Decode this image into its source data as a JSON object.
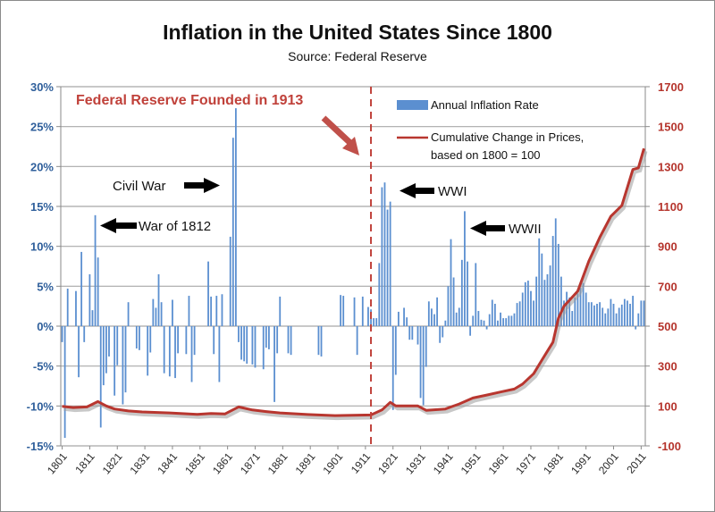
{
  "chart_data": {
    "type": "bar+line",
    "title": "Inflation in the United States Since 1800",
    "subtitle": "Source: Federal Reserve",
    "legend_position": "top-right",
    "grid": true,
    "left_axis": {
      "ylim": [
        -15,
        30
      ],
      "ticks": [
        "-15%",
        "-10%",
        "-5%",
        "0%",
        "5%",
        "10%",
        "15%",
        "20%",
        "25%",
        "30%"
      ],
      "tick_values": [
        -15,
        -10,
        -5,
        0,
        5,
        10,
        15,
        20,
        25,
        30
      ],
      "color": "#2f5f9b"
    },
    "right_axis": {
      "ylim": [
        -100,
        1700
      ],
      "ticks": [
        "-100",
        "100",
        "300",
        "500",
        "700",
        "900",
        "1100",
        "1300",
        "1500",
        "1700"
      ],
      "tick_values": [
        -100,
        100,
        300,
        500,
        700,
        900,
        1100,
        1300,
        1500,
        1700
      ],
      "color": "#b5342c"
    },
    "x_ticks": [
      "1801",
      "1811",
      "1821",
      "1831",
      "1841",
      "1851",
      "1861",
      "1871",
      "1881",
      "1891",
      "1901",
      "1911",
      "1921",
      "1931",
      "1941",
      "1951",
      "1961",
      "1971",
      "1981",
      "1991",
      "2001",
      "2011"
    ],
    "x_tick_values": [
      1801,
      1811,
      1821,
      1831,
      1841,
      1851,
      1861,
      1871,
      1881,
      1891,
      1901,
      1911,
      1921,
      1931,
      1941,
      1951,
      1961,
      1971,
      1981,
      1991,
      2001,
      2011
    ],
    "series": [
      {
        "name": "Annual Inflation Rate",
        "type": "bar",
        "axis": "left",
        "color": "#5b8fd0",
        "x": [
          1801,
          1802,
          1803,
          1804,
          1805,
          1806,
          1807,
          1808,
          1809,
          1810,
          1811,
          1812,
          1813,
          1814,
          1815,
          1816,
          1817,
          1818,
          1819,
          1820,
          1821,
          1822,
          1823,
          1824,
          1825,
          1826,
          1827,
          1828,
          1829,
          1830,
          1831,
          1832,
          1833,
          1834,
          1835,
          1836,
          1837,
          1838,
          1839,
          1840,
          1841,
          1842,
          1843,
          1844,
          1845,
          1846,
          1847,
          1848,
          1849,
          1850,
          1851,
          1852,
          1853,
          1854,
          1855,
          1856,
          1857,
          1858,
          1859,
          1860,
          1861,
          1862,
          1863,
          1864,
          1865,
          1866,
          1867,
          1868,
          1869,
          1870,
          1871,
          1872,
          1873,
          1874,
          1875,
          1876,
          1877,
          1878,
          1879,
          1880,
          1881,
          1882,
          1883,
          1884,
          1885,
          1886,
          1887,
          1888,
          1889,
          1890,
          1891,
          1892,
          1893,
          1894,
          1895,
          1896,
          1897,
          1898,
          1899,
          1900,
          1901,
          1902,
          1903,
          1904,
          1905,
          1906,
          1907,
          1908,
          1909,
          1910,
          1911,
          1912,
          1913,
          1914,
          1915,
          1916,
          1917,
          1918,
          1919,
          1920,
          1921,
          1922,
          1923,
          1924,
          1925,
          1926,
          1927,
          1928,
          1929,
          1930,
          1931,
          1932,
          1933,
          1934,
          1935,
          1936,
          1937,
          1938,
          1939,
          1940,
          1941,
          1942,
          1943,
          1944,
          1945,
          1946,
          1947,
          1948,
          1949,
          1950,
          1951,
          1952,
          1953,
          1954,
          1955,
          1956,
          1957,
          1958,
          1959,
          1960,
          1961,
          1962,
          1963,
          1964,
          1965,
          1966,
          1967,
          1968,
          1969,
          1970,
          1971,
          1972,
          1973,
          1974,
          1975,
          1976,
          1977,
          1978,
          1979,
          1980,
          1981,
          1982,
          1983,
          1984,
          1985,
          1986,
          1987,
          1988,
          1989,
          1990,
          1991,
          1992,
          1993,
          1994,
          1995,
          1996,
          1997,
          1998,
          1999,
          2000,
          2001,
          2002,
          2003,
          2004,
          2005,
          2006,
          2007,
          2008,
          2009,
          2010,
          2011,
          2012
        ],
        "values": [
          -2.0,
          -14.0,
          4.7,
          0,
          0,
          4.4,
          -6.4,
          9.3,
          -2.0,
          0,
          6.5,
          2.0,
          13.9,
          8.6,
          -12.7,
          -7.4,
          -5.9,
          -3.8,
          0,
          -8.7,
          -4.9,
          0,
          -9.8,
          -8.3,
          3.0,
          0,
          0,
          -2.8,
          -3.0,
          0,
          0,
          -6.2,
          -3.3,
          3.4,
          2.3,
          6.5,
          3.0,
          -5.9,
          0,
          -6.3,
          3.3,
          -6.5,
          -3.4,
          0,
          0,
          -3.5,
          3.8,
          -7.0,
          -3.6,
          0,
          0,
          0,
          0,
          8.1,
          3.7,
          -3.5,
          3.8,
          -7.0,
          4.0,
          0,
          0,
          11.2,
          23.6,
          27.3,
          -2.0,
          -4.2,
          -4.4,
          -4.7,
          0,
          -4.8,
          -5.2,
          0,
          0,
          -5.4,
          -2.7,
          -2.9,
          0,
          -9.5,
          -3.4,
          3.7,
          0,
          0,
          -3.4,
          -3.6,
          0,
          0,
          0,
          0,
          0,
          0,
          0,
          0,
          0,
          -3.6,
          -3.8,
          0,
          0,
          0,
          0,
          0,
          0,
          3.9,
          3.8,
          0,
          0,
          0,
          3.6,
          -3.6,
          0,
          3.7,
          0,
          2.4,
          2.1,
          1.0,
          1.0,
          7.9,
          17.4,
          18.0,
          14.6,
          15.6,
          -10.5,
          -6.1,
          1.8,
          0.0,
          2.3,
          1.1,
          -1.7,
          -1.7,
          0.0,
          -2.3,
          -9.0,
          -9.9,
          -5.1,
          3.1,
          2.2,
          1.5,
          3.6,
          -2.1,
          -1.4,
          0.7,
          5.0,
          10.9,
          6.1,
          1.7,
          2.3,
          8.3,
          14.4,
          8.1,
          -1.2,
          1.3,
          7.9,
          1.9,
          0.8,
          0.7,
          -0.4,
          1.5,
          3.3,
          2.8,
          0.7,
          1.7,
          1.0,
          1.0,
          1.3,
          1.3,
          1.6,
          2.9,
          3.1,
          4.2,
          5.5,
          5.7,
          4.4,
          3.2,
          6.2,
          11.0,
          9.1,
          5.8,
          6.5,
          7.6,
          11.3,
          13.5,
          10.3,
          6.2,
          3.2,
          4.3,
          3.6,
          1.9,
          3.6,
          4.1,
          4.8,
          5.4,
          4.2,
          3.0,
          3.0,
          2.6,
          2.8,
          3.0,
          2.3,
          1.6,
          2.2,
          3.4,
          2.8,
          1.6,
          2.3,
          2.7,
          3.4,
          3.2,
          2.8,
          3.8,
          -0.4,
          1.6,
          3.2,
          3.2
        ]
      },
      {
        "name": "Cumulative Change in Prices, based on 1800 = 100",
        "name_line1": "Cumulative Change in Prices,",
        "name_line2": "based on 1800 = 100",
        "type": "line",
        "axis": "right",
        "color": "#b8362f",
        "x": [
          1801,
          1805,
          1810,
          1814,
          1817,
          1820,
          1825,
          1830,
          1840,
          1850,
          1855,
          1860,
          1865,
          1870,
          1875,
          1880,
          1890,
          1900,
          1913,
          1917,
          1920,
          1922,
          1930,
          1933,
          1940,
          1945,
          1950,
          1955,
          1960,
          1965,
          1968,
          1972,
          1975,
          1979,
          1981,
          1983,
          1988,
          1992,
          1996,
          2000,
          2004,
          2008,
          2010,
          2012
        ],
        "values": [
          98,
          92,
          95,
          122,
          100,
          85,
          75,
          70,
          65,
          58,
          62,
          60,
          95,
          80,
          72,
          65,
          57,
          52,
          55,
          80,
          118,
          100,
          100,
          78,
          85,
          110,
          140,
          155,
          170,
          185,
          210,
          262,
          330,
          420,
          540,
          600,
          675,
          825,
          945,
          1050,
          1105,
          1285,
          1293,
          1390
        ]
      }
    ],
    "annotations": [
      {
        "text": "Federal Reserve Founded in 1913",
        "x": 1913,
        "style": "dashed-vertical-line"
      },
      {
        "text": "Civil War",
        "arrow": "right"
      },
      {
        "text": "War of 1812",
        "arrow": "left"
      },
      {
        "text": "WWI",
        "arrow": "left"
      },
      {
        "text": "WWII",
        "arrow": "left"
      }
    ]
  }
}
